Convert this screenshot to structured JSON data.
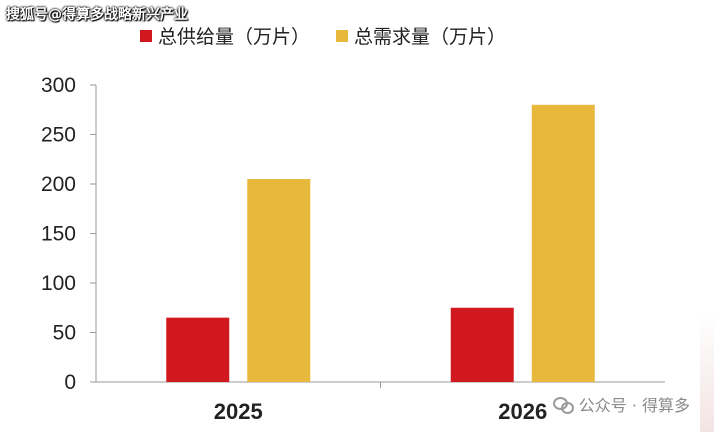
{
  "watermark_top": "搜狐号@得算多战略新兴产业",
  "watermark_bottom": "公众号 · 得算多",
  "legend": {
    "items": [
      {
        "label": "总供给量（万片）",
        "color": "#d0181e"
      },
      {
        "label": "总需求量（万片）",
        "color": "#e8b83c"
      }
    ]
  },
  "chart_data": {
    "type": "bar",
    "categories": [
      "2025",
      "2026"
    ],
    "series": [
      {
        "name": "总供给量（万片）",
        "color": "#d0181e",
        "values": [
          65,
          75
        ]
      },
      {
        "name": "总需求量（万片）",
        "color": "#e8b83c",
        "values": [
          205,
          280
        ]
      }
    ],
    "ylim": [
      0,
      300
    ],
    "yticks": [
      0,
      50,
      100,
      150,
      200,
      250,
      300
    ],
    "grid": false,
    "legend_position": "top"
  }
}
